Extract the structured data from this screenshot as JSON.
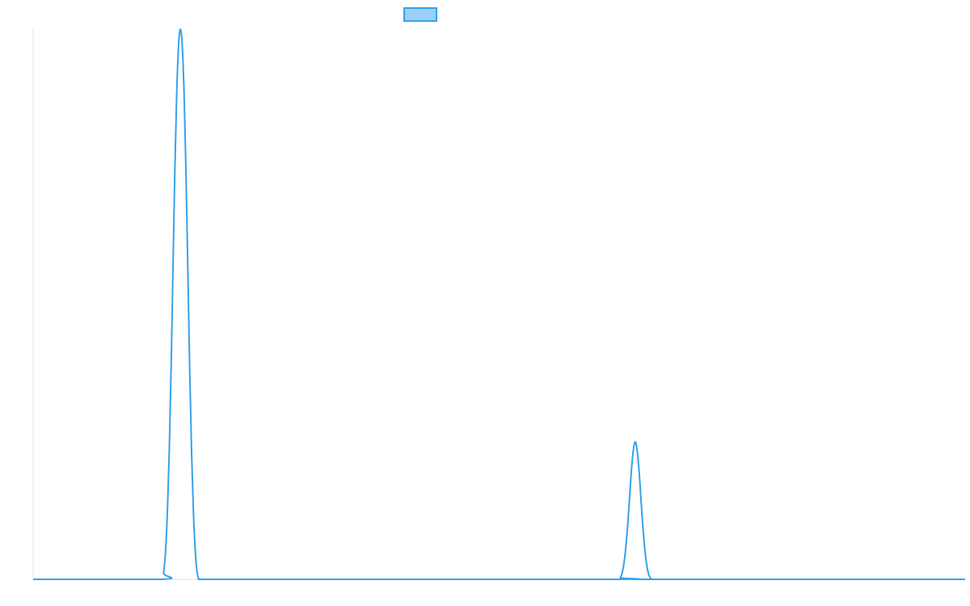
{
  "chart_data": {
    "type": "line",
    "title": "",
    "xlabel": "",
    "ylabel": "",
    "legend": {
      "position": "top-center",
      "entries": [
        ""
      ]
    },
    "grid": false,
    "xlim": [
      0,
      1000
    ],
    "ylim": [
      0,
      1.0
    ],
    "series": [
      {
        "color": "#36A2EB",
        "fill_color": "#9AD0F5",
        "x": [
          0,
          138,
          140,
          142,
          144,
          146,
          148,
          150,
          152,
          154,
          156,
          158,
          160,
          162,
          164,
          166,
          168,
          170,
          172,
          174,
          176,
          178,
          180,
          212,
          325,
          628,
          630,
          632,
          634,
          636,
          638,
          640,
          642,
          644,
          646,
          648,
          650,
          652,
          654,
          656,
          658,
          660,
          662,
          664,
          666,
          668,
          670,
          1000
        ],
        "y": [
          0,
          0,
          0.012,
          0.05,
          0.12,
          0.23,
          0.38,
          0.56,
          0.74,
          0.88,
          0.97,
          1.0,
          0.97,
          0.88,
          0.74,
          0.56,
          0.38,
          0.23,
          0.12,
          0.05,
          0.012,
          0,
          0,
          0,
          0,
          0,
          0.003,
          0.012,
          0.03,
          0.06,
          0.1,
          0.15,
          0.2,
          0.235,
          0.25,
          0.235,
          0.2,
          0.15,
          0.1,
          0.06,
          0.03,
          0.012,
          0.003,
          0,
          0,
          0,
          0,
          0
        ]
      }
    ]
  }
}
